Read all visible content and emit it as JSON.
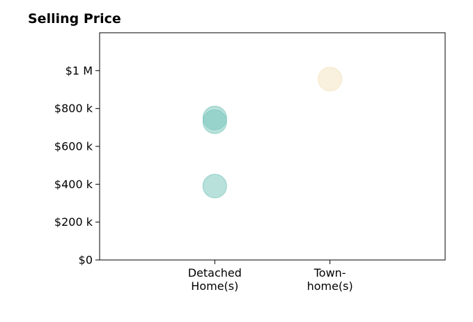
{
  "chart_data": {
    "type": "scatter",
    "title": "Selling Price",
    "xlabel": "",
    "ylabel": "",
    "categories": [
      [
        "Detached",
        "Home(s)"
      ],
      [
        "Town-",
        "home(s)"
      ]
    ],
    "xlim": [
      0,
      3
    ],
    "ylim": [
      0,
      1200000
    ],
    "yticks": [
      0,
      200000,
      400000,
      600000,
      800000,
      1000000
    ],
    "ytick_labels": [
      "$0",
      "$200 k",
      "$400 k",
      "$600 k",
      "$800 k",
      "$1 M"
    ],
    "grid": false,
    "points": [
      {
        "category_index": 0,
        "value": 750000,
        "color": "#7ec8bd"
      },
      {
        "category_index": 0,
        "value": 730000,
        "color": "#7ec8bd"
      },
      {
        "category_index": 0,
        "value": 390000,
        "color": "#7ec8bd"
      },
      {
        "category_index": 1,
        "value": 955000,
        "color": "#f4e3c1"
      }
    ]
  }
}
